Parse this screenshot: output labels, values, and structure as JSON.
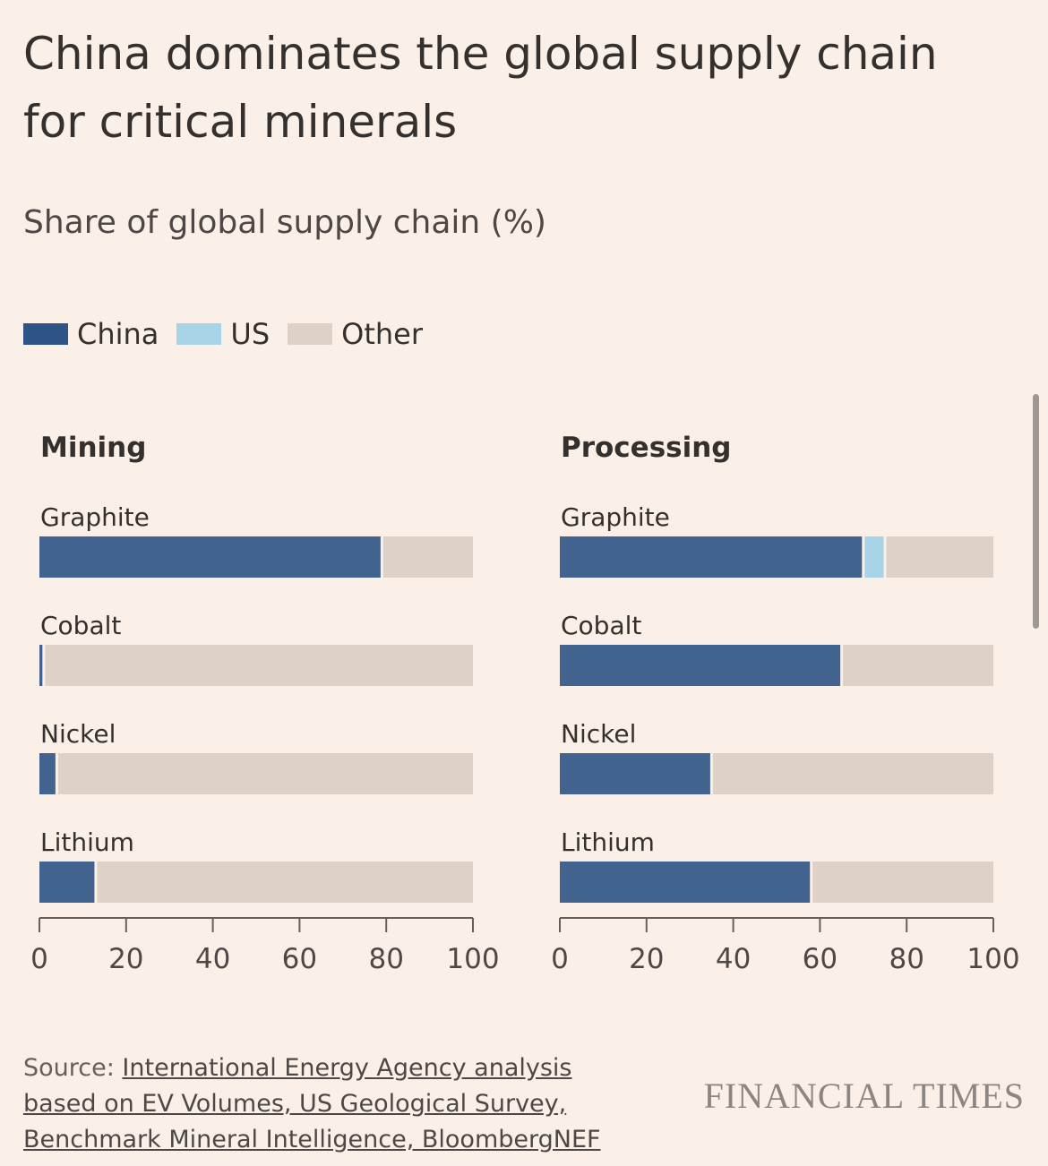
{
  "title": "China dominates the global supply chain for critical minerals",
  "subtitle": "Share of global supply chain (%)",
  "legend": [
    {
      "label": "China",
      "color": "#2E5487"
    },
    {
      "label": "US",
      "color": "#A7D3E6"
    },
    {
      "label": "Other",
      "color": "#DDD1C8"
    }
  ],
  "colors": {
    "china": "#43638F",
    "us": "#A7D3E6",
    "other": "#DDD1C8",
    "axis": "#66605C"
  },
  "chart_data": [
    {
      "type": "bar",
      "stacked": true,
      "orientation": "horizontal",
      "title": "Mining",
      "categories": [
        "Graphite",
        "Cobalt",
        "Nickel",
        "Lithium"
      ],
      "series": [
        {
          "name": "China",
          "values": [
            79,
            1,
            4,
            13
          ]
        },
        {
          "name": "US",
          "values": [
            0,
            0,
            0,
            0
          ]
        },
        {
          "name": "Other",
          "values": [
            21,
            99,
            96,
            87
          ]
        }
      ],
      "xlim": [
        0,
        100
      ],
      "xticks": [
        0,
        20,
        40,
        60,
        80,
        100
      ]
    },
    {
      "type": "bar",
      "stacked": true,
      "orientation": "horizontal",
      "title": "Processing",
      "categories": [
        "Graphite",
        "Cobalt",
        "Nickel",
        "Lithium"
      ],
      "series": [
        {
          "name": "China",
          "values": [
            70,
            65,
            35,
            58
          ]
        },
        {
          "name": "US",
          "values": [
            5,
            0,
            0,
            0
          ]
        },
        {
          "name": "Other",
          "values": [
            25,
            35,
            65,
            42
          ]
        }
      ],
      "xlim": [
        0,
        100
      ],
      "xticks": [
        0,
        20,
        40,
        60,
        80,
        100
      ]
    }
  ],
  "source": {
    "prefix": "Source: ",
    "link_text": "International Energy Agency analysis based on EV Volumes, US Geological Survey, Benchmark Mineral Intelligence, BloombergNEF"
  },
  "brand": "FINANCIAL TIMES"
}
